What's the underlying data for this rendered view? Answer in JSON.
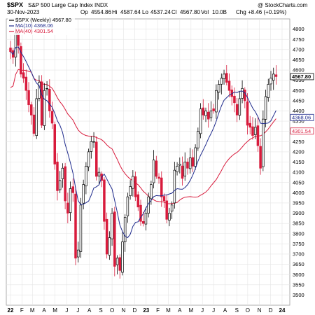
{
  "header": {
    "symbol": "$SPX",
    "name": "S&P 500 Large Cap Index",
    "exchange": "INDX",
    "brand": "@ StockCharts.com",
    "date": "30-Nov-2023",
    "op_label": "Op",
    "op": "4554.86",
    "hi_label": "Hi",
    "hi": "4587.64",
    "lo_label": "Lo",
    "lo": "4537.24",
    "cl_label": "Cl",
    "cl": "4567.80",
    "vol_label": "Vol",
    "vol": "10.0B",
    "chg_label": "Chg",
    "chg": "+8.46 (+0.19%)"
  },
  "legend": [
    {
      "label": "$SPX (Weekly) 4567.80",
      "color": "#000000"
    },
    {
      "label": "MA(10) 4368.06",
      "color": "#1e2a8c"
    },
    {
      "label": "MA(40) 4301.54",
      "color": "#d81b3c"
    }
  ],
  "tags": [
    {
      "label": "4567.80",
      "value": 4567.8,
      "color": "#000000",
      "bold": true
    },
    {
      "label": "4368.06",
      "value": 4368.06,
      "color": "#1e2a8c",
      "bold": false
    },
    {
      "label": "4301.54",
      "value": 4301.54,
      "color": "#d81b3c",
      "bold": false
    }
  ],
  "colors": {
    "up": "#000000",
    "down": "#d81b3c",
    "ma10": "#1e2a8c",
    "ma40": "#d81b3c",
    "grid": "#e4e4e4"
  },
  "chart_data": {
    "type": "line",
    "title": "S&P 500 Large Cap Index",
    "ylim": [
      3450,
      4850
    ],
    "yticks": [
      3500,
      3550,
      3600,
      3650,
      3700,
      3750,
      3800,
      3850,
      3900,
      3950,
      4000,
      4050,
      4100,
      4150,
      4200,
      4250,
      4300,
      4350,
      4400,
      4450,
      4500,
      4550,
      4600,
      4650,
      4700,
      4750,
      4800
    ],
    "xticks": [
      {
        "label": "22",
        "week": 0,
        "bold": true
      },
      {
        "label": "F",
        "week": 4.4
      },
      {
        "label": "M",
        "week": 8.4
      },
      {
        "label": "A",
        "week": 12.9
      },
      {
        "label": "M",
        "week": 17.1
      },
      {
        "label": "J",
        "week": 21.6
      },
      {
        "label": "J",
        "week": 25.9
      },
      {
        "label": "A",
        "week": 30.3
      },
      {
        "label": "S",
        "week": 34.7
      },
      {
        "label": "O",
        "week": 39.0
      },
      {
        "label": "N",
        "week": 43.4
      },
      {
        "label": "D",
        "week": 47.7
      },
      {
        "label": "23",
        "week": 52.1,
        "bold": true
      },
      {
        "label": "F",
        "week": 56.6
      },
      {
        "label": "M",
        "week": 60.6
      },
      {
        "label": "A",
        "week": 65.0
      },
      {
        "label": "M",
        "week": 69.3
      },
      {
        "label": "J",
        "week": 73.7
      },
      {
        "label": "J",
        "week": 78.0
      },
      {
        "label": "A",
        "week": 82.4
      },
      {
        "label": "S",
        "week": 86.9
      },
      {
        "label": "O",
        "week": 91.1
      },
      {
        "label": "N",
        "week": 95.6
      },
      {
        "label": "D",
        "week": 99.9
      },
      {
        "label": "24",
        "week": 104.3,
        "bold": true
      }
    ],
    "close": [
      4690,
      4662,
      4780,
      4720,
      4580,
      4560,
      4500,
      4430,
      4380,
      4290,
      4460,
      4540,
      4330,
      4500,
      4510,
      4400,
      4340,
      4140,
      4010,
      4060,
      4120,
      3960,
      3900,
      4020,
      4000,
      3680,
      3720,
      3940,
      4040,
      4130,
      4200,
      4250,
      4250,
      4080,
      4100,
      4060,
      3860,
      3700,
      3780,
      3900,
      3640,
      3680,
      3620,
      3760,
      3880,
      3980,
      4030,
      4080,
      3980,
      3930,
      3860,
      3850,
      3900,
      3980,
      4040,
      4160,
      4080,
      4070,
      3980,
      3960,
      3870,
      3900,
      3940,
      4110,
      4130,
      4140,
      4070,
      4150,
      4120,
      4170,
      4130,
      4220,
      4300,
      4410,
      4380,
      4400,
      4360,
      4400,
      4400,
      4500,
      4530,
      4560,
      4580,
      4540,
      4500,
      4470,
      4440,
      4380,
      4460,
      4510,
      4450,
      4330,
      4320,
      4280,
      4320,
      4230,
      4120,
      4360,
      4470,
      4530,
      4560,
      4580,
      4568
    ],
    "ma10_label": "MA(10)",
    "ma40_label": "MA(40)"
  }
}
